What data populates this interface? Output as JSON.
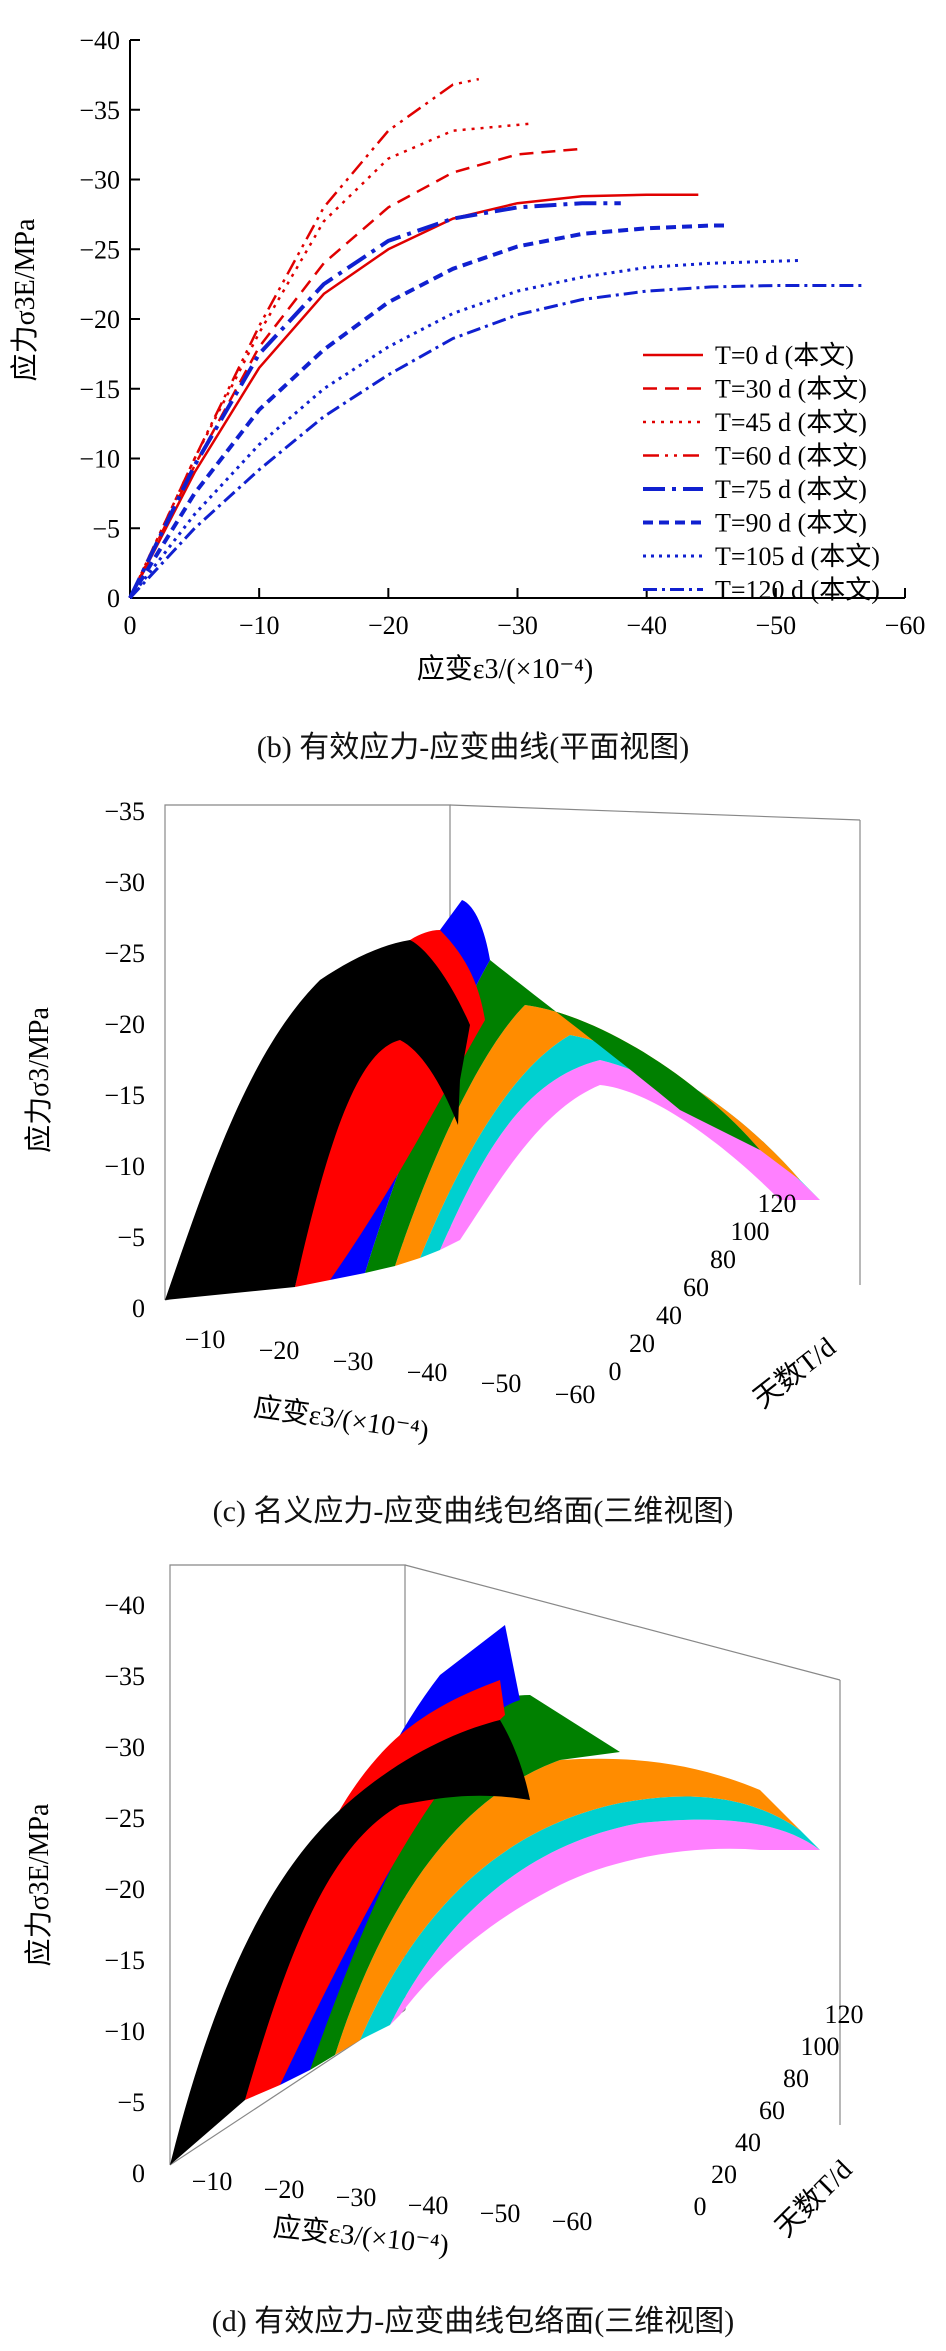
{
  "chart_data": [
    {
      "type": "line",
      "panel": "b",
      "caption": "(b)  有效应力-应变曲线(平面视图)",
      "xlabel": "应变ε3/(×10⁻⁴)",
      "ylabel": "应力σ3E/MPa",
      "xlim": [
        0,
        -60
      ],
      "ylim": [
        0,
        -40
      ],
      "xticks": [
        0,
        -10,
        -20,
        -30,
        -40,
        -50,
        -60
      ],
      "yticks": [
        0,
        -5,
        -10,
        -15,
        -20,
        -25,
        -30,
        -35,
        -40
      ],
      "legend_position": "lower-right",
      "series": [
        {
          "name": "T=0 d   (本文)",
          "color": "#e00000",
          "dash": "solid",
          "width": 2.5,
          "x": [
            0,
            -5,
            -10,
            -15,
            -20,
            -25,
            -30,
            -35,
            -40,
            -44
          ],
          "y": [
            0,
            -9,
            -16.5,
            -21.8,
            -25,
            -27.2,
            -28.3,
            -28.8,
            -28.9,
            -28.9
          ]
        },
        {
          "name": "T=30 d   (本文)",
          "color": "#e00000",
          "dash": "14,8",
          "width": 2.5,
          "x": [
            0,
            -5,
            -10,
            -15,
            -20,
            -25,
            -30,
            -35
          ],
          "y": [
            0,
            -9.5,
            -18,
            -24,
            -28,
            -30.5,
            -31.8,
            -32.2
          ]
        },
        {
          "name": "T=45 d   (本文)",
          "color": "#e00000",
          "dash": "3,6",
          "width": 2.5,
          "x": [
            0,
            -5,
            -10,
            -15,
            -20,
            -25,
            -31
          ],
          "y": [
            0,
            -10,
            -19,
            -27,
            -31.5,
            -33.5,
            -34
          ]
        },
        {
          "name": "T=60 d   (本文)",
          "color": "#e00000",
          "dash": "16,6,3,6,3,6",
          "width": 2.5,
          "x": [
            0,
            -5,
            -10,
            -15,
            -20,
            -25,
            -27
          ],
          "y": [
            0,
            -10,
            -19.5,
            -28,
            -33.5,
            -36.8,
            -37.2
          ]
        },
        {
          "name": "T=75 d   (本文)",
          "color": "#1020d0",
          "dash": "22,7,4,7",
          "width": 4,
          "x": [
            0,
            -5,
            -10,
            -15,
            -20,
            -25,
            -30,
            -35,
            -38
          ],
          "y": [
            0,
            -9.5,
            -17.5,
            -22.5,
            -25.6,
            -27.2,
            -28,
            -28.3,
            -28.3
          ]
        },
        {
          "name": "T=90 d   (本文)",
          "color": "#1020d0",
          "dash": "10,6",
          "width": 4,
          "x": [
            0,
            -5,
            -10,
            -15,
            -20,
            -25,
            -30,
            -35,
            -40,
            -45,
            -46
          ],
          "y": [
            0,
            -7.5,
            -13.5,
            -17.8,
            -21.2,
            -23.6,
            -25.2,
            -26.1,
            -26.5,
            -26.7,
            -26.7
          ]
        },
        {
          "name": "T=105 d (本文)",
          "color": "#1020d0",
          "dash": "3,5",
          "width": 3,
          "x": [
            0,
            -5,
            -10,
            -15,
            -20,
            -25,
            -30,
            -35,
            -40,
            -45,
            -52
          ],
          "y": [
            0,
            -6,
            -11,
            -15,
            -18,
            -20.4,
            -22,
            -23,
            -23.7,
            -24,
            -24.2
          ]
        },
        {
          "name": "T=120 d (本文)",
          "color": "#1020d0",
          "dash": "14,5,3,5",
          "width": 3,
          "x": [
            0,
            -5,
            -10,
            -15,
            -20,
            -25,
            -30,
            -35,
            -40,
            -45,
            -50,
            -57
          ],
          "y": [
            0,
            -5,
            -9.2,
            -13,
            -16,
            -18.6,
            -20.3,
            -21.4,
            -22,
            -22.3,
            -22.4,
            -22.4
          ]
        }
      ]
    },
    {
      "type": "surface3d",
      "panel": "c",
      "caption": "(c)  名义应力-应变曲线包络面(三维视图)",
      "xlabel": "应变ε3/(×10⁻⁴)",
      "ylabel": "应力σ3/MPa",
      "zlabel": "天数T/d",
      "stress_ticks": [
        0,
        -5,
        -10,
        -15,
        -20,
        -25,
        -30,
        -35
      ],
      "strain_ticks": [
        -10,
        -20,
        -30,
        -40,
        -50,
        -60
      ],
      "day_ticks": [
        0,
        20,
        40,
        60,
        80,
        100,
        120
      ],
      "bands": [
        {
          "days": [
            0,
            15
          ],
          "color": "#000000"
        },
        {
          "days": [
            15,
            30
          ],
          "color": "#ff0000"
        },
        {
          "days": [
            30,
            45
          ],
          "color": "#0000ff"
        },
        {
          "days": [
            45,
            60
          ],
          "color": "#008000"
        },
        {
          "days": [
            60,
            75
          ],
          "color": "#ff8c00"
        },
        {
          "days": [
            75,
            90
          ],
          "color": "#00d0d0"
        },
        {
          "days": [
            90,
            105
          ],
          "color": "#ff80ff"
        }
      ]
    },
    {
      "type": "surface3d",
      "panel": "d",
      "caption": "(d)  有效应力-应变曲线包络面(三维视图)",
      "xlabel": "应变ε3/(×10⁻⁴)",
      "ylabel": "应力σ3E/MPa",
      "zlabel": "天数T/d",
      "stress_ticks": [
        0,
        -5,
        -10,
        -15,
        -20,
        -25,
        -30,
        -35,
        -40
      ],
      "strain_ticks": [
        -10,
        -20,
        -30,
        -40,
        -50,
        -60
      ],
      "day_ticks": [
        0,
        20,
        40,
        60,
        80,
        100,
        120
      ],
      "bands": [
        {
          "days": [
            0,
            15
          ],
          "color": "#000000"
        },
        {
          "days": [
            15,
            30
          ],
          "color": "#ff0000"
        },
        {
          "days": [
            30,
            45
          ],
          "color": "#0000ff"
        },
        {
          "days": [
            45,
            60
          ],
          "color": "#008000"
        },
        {
          "days": [
            60,
            75
          ],
          "color": "#ff8c00"
        },
        {
          "days": [
            75,
            90
          ],
          "color": "#00d0d0"
        },
        {
          "days": [
            90,
            105
          ],
          "color": "#ff80ff"
        }
      ]
    }
  ]
}
